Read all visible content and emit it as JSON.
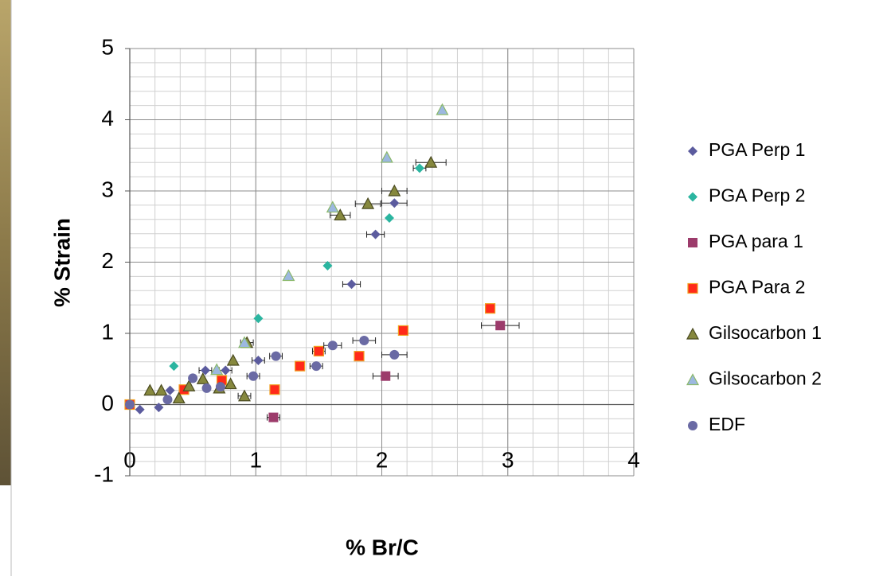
{
  "chart_data": {
    "type": "scatter",
    "x_label": "% Br/C",
    "y_label": "% Strain",
    "xlim": [
      0,
      4
    ],
    "ylim": [
      -1,
      5
    ],
    "xticks": [
      0,
      1,
      2,
      3,
      4
    ],
    "yticks": [
      -1,
      0,
      1,
      2,
      3,
      4,
      5
    ],
    "grid": true,
    "minor_step": 0.2,
    "legend": "right",
    "series": [
      {
        "name": "PGA Perp 1",
        "color": "#5b5b9e",
        "marker": "diamond",
        "x": [
          0.08,
          0.23,
          0.32,
          0.6,
          0.76,
          1.02,
          1.76,
          1.95,
          2.1
        ],
        "values": [
          -0.07,
          -0.04,
          0.2,
          0.48,
          0.48,
          0.62,
          1.69,
          2.39,
          2.83
        ],
        "xerr": [
          null,
          null,
          null,
          0.05,
          0.05,
          0.05,
          0.07,
          0.07,
          0.1
        ]
      },
      {
        "name": "PGA Perp 2",
        "color": "#2bb5a0",
        "marker": "diamond",
        "x": [
          0.35,
          1.02,
          1.57,
          2.06,
          2.3
        ],
        "values": [
          0.54,
          1.21,
          1.95,
          2.62,
          3.32
        ],
        "xerr": [
          null,
          null,
          null,
          null,
          0.05
        ]
      },
      {
        "name": "PGA para 1",
        "color": "#9c3b6b",
        "marker": "square",
        "x": [
          1.14,
          2.03,
          2.94
        ],
        "values": [
          -0.18,
          0.4,
          1.11
        ],
        "xerr": [
          0.05,
          0.1,
          0.15
        ]
      },
      {
        "name": "PGA Para 2",
        "color": "#ff2a1a",
        "marker": "square",
        "x": [
          0,
          0.43,
          0.73,
          1.15,
          1.35,
          1.5,
          1.82,
          2.17,
          2.86
        ],
        "values": [
          0,
          0.21,
          0.34,
          0.21,
          0.54,
          0.75,
          0.68,
          1.04,
          1.35
        ],
        "xerr": [
          null,
          null,
          null,
          null,
          null,
          0.05,
          null,
          null,
          null
        ]
      },
      {
        "name": "Gilsocarbon 1",
        "color": "#86883e",
        "marker": "triangle",
        "x": [
          0.16,
          0.25,
          0.39,
          0.47,
          0.58,
          0.71,
          0.8,
          0.82,
          0.91,
          0.93,
          1.67,
          1.89,
          2.1,
          2.39
        ],
        "values": [
          0.2,
          0.2,
          0.09,
          0.26,
          0.36,
          0.23,
          0.29,
          0.62,
          0.12,
          0.87,
          2.66,
          2.82,
          3.0,
          3.4
        ],
        "xerr": [
          null,
          null,
          null,
          null,
          null,
          null,
          null,
          null,
          0.05,
          0.05,
          0.08,
          0.1,
          0.1,
          0.12
        ]
      },
      {
        "name": "Gilsocarbon 2",
        "color": "#9cb8e0",
        "marker": "triangle",
        "x": [
          0.69,
          0.91,
          1.26,
          1.61,
          2.04,
          2.48
        ],
        "values": [
          0.49,
          0.87,
          1.81,
          2.77,
          3.47,
          4.14
        ],
        "xerr": [
          null,
          null,
          null,
          null,
          null,
          null
        ]
      },
      {
        "name": "EDF",
        "color": "#6a6aa4",
        "marker": "circle",
        "x": [
          0,
          0.3,
          0.5,
          0.61,
          0.72,
          0.98,
          1.16,
          1.48,
          1.61,
          1.86,
          2.1
        ],
        "values": [
          0,
          0.07,
          0.37,
          0.23,
          0.25,
          0.4,
          0.68,
          0.54,
          0.83,
          0.9,
          0.7
        ],
        "xerr": [
          null,
          null,
          null,
          null,
          null,
          0.05,
          0.05,
          0.05,
          0.07,
          0.09,
          0.1
        ]
      }
    ]
  }
}
